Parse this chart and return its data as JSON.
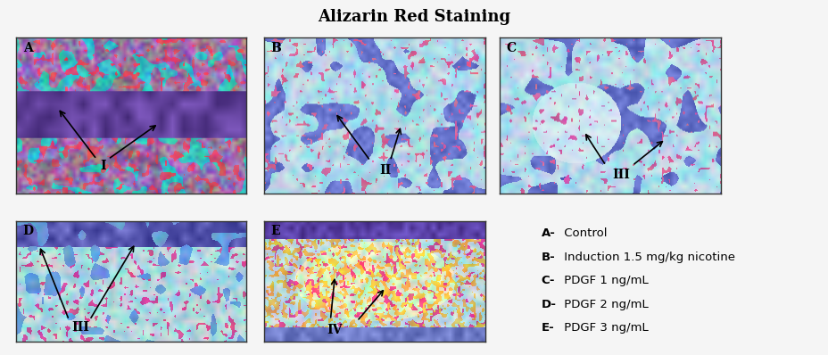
{
  "title": "Alizarin Red Staining",
  "title_fontsize": 13,
  "title_fontweight": "bold",
  "background_color": "#f5f5f5",
  "legend_lines": [
    [
      "A-",
      " Control"
    ],
    [
      "B-",
      " Induction 1.5 mg/kg nicotine"
    ],
    [
      "C-",
      " PDGF 1 ng/mL"
    ],
    [
      "D-",
      " PDGF 2 ng/mL"
    ],
    [
      "E-",
      " PDGF 3 ng/mL"
    ]
  ],
  "panel_colors": {
    "A": {
      "bg": [
        180,
        150,
        200
      ],
      "accent": [
        100,
        80,
        160
      ],
      "teal": [
        80,
        200,
        200
      ]
    },
    "B": {
      "bg": [
        160,
        220,
        235
      ],
      "accent": [
        100,
        130,
        200
      ],
      "dark": [
        80,
        100,
        180
      ]
    },
    "C": {
      "bg": [
        160,
        225,
        240
      ],
      "accent": [
        100,
        140,
        210
      ],
      "dark": [
        80,
        110,
        190
      ]
    },
    "D": {
      "bg": [
        150,
        220,
        235
      ],
      "accent": [
        80,
        120,
        200
      ],
      "dark": [
        60,
        80,
        180
      ]
    },
    "E": {
      "bg": [
        170,
        210,
        225
      ],
      "accent": [
        130,
        160,
        210
      ],
      "warm": [
        200,
        180,
        150
      ]
    }
  }
}
